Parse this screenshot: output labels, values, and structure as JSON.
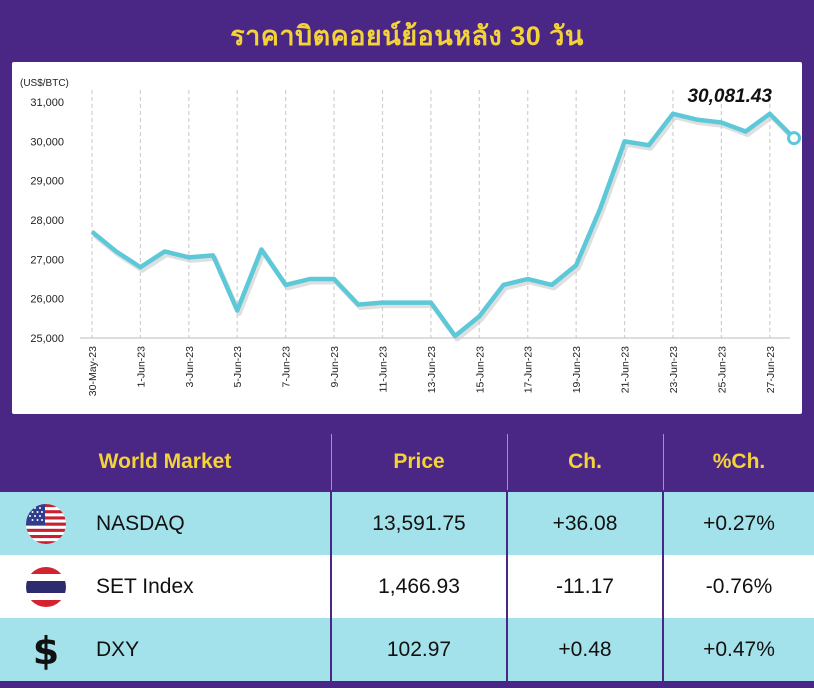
{
  "title": "ราคาบิตคอยน์ย้อนหลัง 30 วัน",
  "chart_data": {
    "type": "line",
    "ylabel": "(US$/BTC)",
    "ylim": [
      25000,
      31000
    ],
    "yticks": [
      "25,000",
      "26,000",
      "27,000",
      "28,000",
      "29,000",
      "30,000",
      "31,000"
    ],
    "ytick_values": [
      25000,
      26000,
      27000,
      28000,
      29000,
      30000,
      31000
    ],
    "xticks": [
      "30-May-23",
      "1-Jun-23",
      "3-Jun-23",
      "5-Jun-23",
      "7-Jun-23",
      "9-Jun-23",
      "11-Jun-23",
      "13-Jun-23",
      "15-Jun-23",
      "17-Jun-23",
      "19-Jun-23",
      "21-Jun-23",
      "23-Jun-23",
      "25-Jun-23",
      "27-Jun-23"
    ],
    "x": [
      "30-May-23",
      "31-May-23",
      "1-Jun-23",
      "2-Jun-23",
      "3-Jun-23",
      "4-Jun-23",
      "5-Jun-23",
      "6-Jun-23",
      "7-Jun-23",
      "8-Jun-23",
      "9-Jun-23",
      "10-Jun-23",
      "11-Jun-23",
      "12-Jun-23",
      "13-Jun-23",
      "14-Jun-23",
      "15-Jun-23",
      "16-Jun-23",
      "17-Jun-23",
      "18-Jun-23",
      "19-Jun-23",
      "20-Jun-23",
      "21-Jun-23",
      "22-Jun-23",
      "23-Jun-23",
      "24-Jun-23",
      "25-Jun-23",
      "26-Jun-23",
      "27-Jun-23",
      "28-Jun-23"
    ],
    "values": [
      27700,
      27200,
      26800,
      27200,
      27050,
      27100,
      25700,
      27250,
      26350,
      26500,
      26500,
      25850,
      25900,
      25900,
      25900,
      25050,
      25550,
      26350,
      26500,
      26350,
      26850,
      28300,
      30000,
      29900,
      30700,
      30550,
      30480,
      30250,
      30700,
      30081.43
    ],
    "annotation": "30,081.43",
    "grid": "vertical",
    "line_color": "#5cc8d8"
  },
  "table": {
    "headers": [
      "World Market",
      "Price",
      "Ch.",
      "%Ch."
    ],
    "rows": [
      {
        "icon": "us-flag-icon",
        "name": "NASDAQ",
        "price": "13,591.75",
        "change": "+36.08",
        "pct": "+0.27%"
      },
      {
        "icon": "thai-flag-icon",
        "name": "SET Index",
        "price": "1,466.93",
        "change": "-11.17",
        "pct": "-0.76%"
      },
      {
        "icon": "dollar-icon",
        "name": "DXY",
        "price": "102.97",
        "change": "+0.48",
        "pct": "+0.47%"
      }
    ]
  }
}
